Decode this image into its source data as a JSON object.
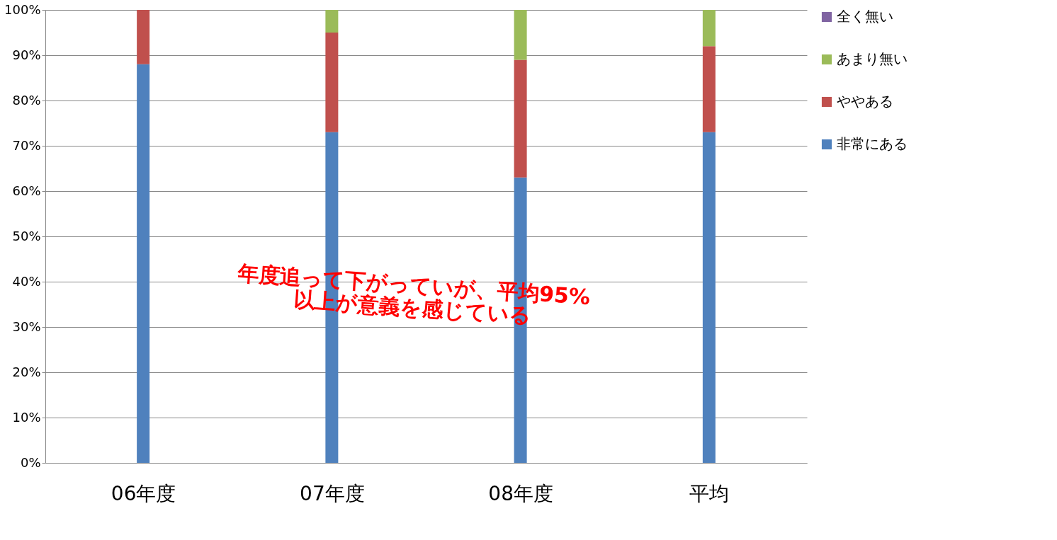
{
  "chart_data": {
    "type": "bar",
    "stacked": true,
    "categories": [
      "06年度",
      "07年度",
      "08年度",
      "平均"
    ],
    "series": [
      {
        "name": "非常にある",
        "color": "#4f81bd",
        "values": [
          88,
          73,
          63,
          73
        ]
      },
      {
        "name": "ややある",
        "color": "#c0504d",
        "values": [
          12,
          22,
          26,
          19
        ]
      },
      {
        "name": "あまり無い",
        "color": "#9bbb59",
        "values": [
          0,
          5,
          11,
          8
        ]
      },
      {
        "name": "全く無い",
        "color": "#8064a2",
        "values": [
          0,
          0,
          0,
          0
        ]
      }
    ],
    "ylim": [
      0,
      100
    ],
    "yticks": [
      {
        "value": 0,
        "label": "0%"
      },
      {
        "value": 10,
        "label": "10%"
      },
      {
        "value": 20,
        "label": "20%"
      },
      {
        "value": 30,
        "label": "30%"
      },
      {
        "value": 40,
        "label": "40%"
      },
      {
        "value": 50,
        "label": "50%"
      },
      {
        "value": 60,
        "label": "60%"
      },
      {
        "value": 70,
        "label": "70%"
      },
      {
        "value": 80,
        "label": "80%"
      },
      {
        "value": 90,
        "label": "90%"
      },
      {
        "value": 100,
        "label": "100%"
      }
    ],
    "grid": "y",
    "legend": "right",
    "annotations": [
      "年度追って下がっていが、平均95%\n以上が意義を感じている"
    ]
  }
}
